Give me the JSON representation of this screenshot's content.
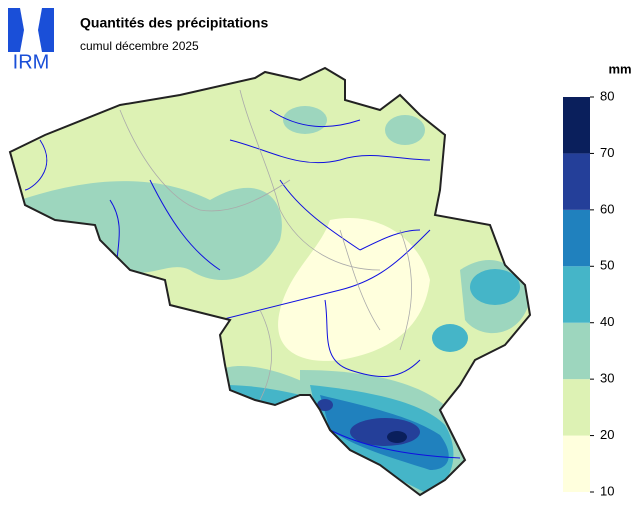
{
  "header": {
    "logo": "IRM",
    "title": "Quantités des précipitations",
    "subtitle": "cumul décembre 2025"
  },
  "legend": {
    "unit": "mm",
    "ticks": [
      10,
      20,
      30,
      40,
      50,
      60,
      70,
      80
    ],
    "colors": [
      "#ffffdd",
      "#ddf2b4",
      "#9dd6be",
      "#45b5c8",
      "#2081be",
      "#243f99",
      "#0a1f5c"
    ]
  }
}
